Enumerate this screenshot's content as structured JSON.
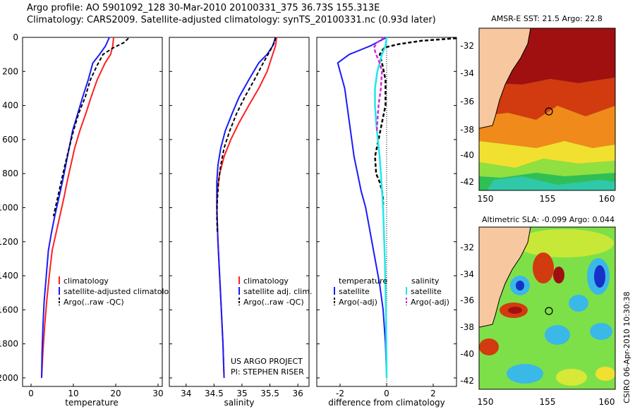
{
  "header": {
    "line1": "Argo profile: AO 5901092_128 30-Mar-2010 20100331_375 36.73S 155.313E",
    "line2": "Climatology: CARS2009. Satellite-adjusted climatology: synTS_20100331.nc (0.93d later)"
  },
  "panels": {
    "temperature": {
      "xlabel": "temperature",
      "xticks": [
        "0",
        "10",
        "20",
        "30"
      ],
      "legend": [
        "climatology",
        "satellite-adjusted climatology",
        "Argo(..raw -QC)"
      ]
    },
    "salinity": {
      "xlabel": "salinity",
      "xticks": [
        "34",
        "34.5",
        "35",
        "35.5",
        "36"
      ],
      "legend": [
        "climatology",
        "satellite adj. clim.",
        "Argo(..raw -QC)"
      ],
      "note1": "US ARGO PROJECT",
      "note2": "PI: STEPHEN RISER"
    },
    "difference": {
      "xlabel": "difference from climatology",
      "xticks": [
        "-2",
        "0",
        "2"
      ],
      "legend_head_t": "temperature",
      "legend_head_s": "salinity",
      "legend_t": [
        "satellite",
        "Argo(-adj)"
      ],
      "legend_s": [
        "satellite",
        "Argo(-adj)"
      ]
    }
  },
  "yticks": [
    "0",
    "200",
    "400",
    "600",
    "800",
    "1000",
    "1200",
    "1400",
    "1600",
    "1800",
    "2000"
  ],
  "maps": {
    "sst": {
      "title": "AMSR-E SST: 21.5 Argo: 22.8",
      "yticks": [
        "-32",
        "-34",
        "-36",
        "-38",
        "-40",
        "-42"
      ],
      "xticks": [
        "150",
        "155",
        "160"
      ]
    },
    "sla": {
      "title": "Altimetric SLA: -0.099 Argo: 0.044",
      "yticks": [
        "-32",
        "-34",
        "-36",
        "-38",
        "-40",
        "-42"
      ],
      "xticks": [
        "150",
        "155",
        "160"
      ]
    }
  },
  "credit": "CSIRO 06-Apr-2010 10:30:38",
  "colors": {
    "climatology": "#ff2020",
    "satellite": "#1a1aff",
    "argo": "#000000",
    "sal_sat": "#20e8e8",
    "sal_argo": "#e020e0"
  },
  "chart_data": [
    {
      "type": "line",
      "title": "",
      "xlabel": "temperature",
      "ylabel": "",
      "xlim": [
        -2,
        31
      ],
      "ylim": [
        2050,
        0
      ],
      "series": [
        {
          "name": "climatology",
          "x": [
            19.5,
            19.3,
            18.8,
            17.5,
            15.6,
            14.2,
            12.9,
            11.5,
            10.3,
            9.4,
            8.5,
            7.7,
            6.8,
            5.9,
            5.0,
            4.3,
            3.7,
            3.2,
            2.8,
            2.6,
            2.5
          ],
          "y": [
            0,
            50,
            100,
            150,
            250,
            350,
            450,
            550,
            650,
            750,
            850,
            950,
            1050,
            1150,
            1250,
            1400,
            1550,
            1700,
            1850,
            1950,
            2000
          ]
        },
        {
          "name": "satellite-adjusted climatology",
          "x": [
            18.5,
            17.6,
            16.2,
            14.6,
            13.5,
            12.2,
            11.0,
            9.8,
            9.0,
            8.2,
            7.4,
            6.5,
            5.6,
            4.8,
            4.1,
            3.6,
            3.1,
            2.8,
            2.6,
            2.5
          ],
          "y": [
            0,
            50,
            100,
            150,
            250,
            350,
            450,
            550,
            650,
            750,
            850,
            950,
            1050,
            1150,
            1250,
            1400,
            1550,
            1700,
            1850,
            2000
          ]
        },
        {
          "name": "Argo(..raw -QC)",
          "x": [
            23.0,
            22.0,
            19.5,
            17.0,
            15.5,
            14.0,
            12.8,
            11.2,
            10.0,
            9.0,
            8.0,
            7.1,
            6.2,
            5.3
          ],
          "y": [
            5,
            30,
            60,
            100,
            170,
            250,
            350,
            450,
            550,
            650,
            750,
            850,
            950,
            1050
          ]
        }
      ]
    },
    {
      "type": "line",
      "title": "",
      "xlabel": "salinity",
      "ylabel": "",
      "xlim": [
        33.7,
        36.2
      ],
      "ylim": [
        2050,
        0
      ],
      "series": [
        {
          "name": "climatology",
          "x": [
            35.62,
            35.6,
            35.55,
            35.45,
            35.3,
            35.12,
            34.95,
            34.8,
            34.68,
            34.6,
            34.56,
            34.55,
            34.57,
            34.6,
            34.63,
            34.66,
            34.68
          ],
          "y": [
            0,
            50,
            100,
            200,
            300,
            400,
            500,
            600,
            700,
            800,
            900,
            1000,
            1200,
            1400,
            1600,
            1800,
            2000
          ]
        },
        {
          "name": "satellite adj. clim.",
          "x": [
            35.6,
            35.55,
            35.45,
            35.3,
            35.12,
            34.95,
            34.82,
            34.7,
            34.62,
            34.57,
            34.55,
            34.55,
            34.57,
            34.6,
            34.63,
            34.66,
            34.68
          ],
          "y": [
            0,
            50,
            100,
            150,
            250,
            350,
            450,
            550,
            650,
            750,
            850,
            1000,
            1200,
            1400,
            1600,
            1800,
            2000
          ]
        },
        {
          "name": "Argo(..raw -QC)",
          "x": [
            35.6,
            35.58,
            35.5,
            35.38,
            35.22,
            35.05,
            34.9,
            34.78,
            34.68,
            34.62,
            34.58,
            34.56,
            34.55,
            34.56
          ],
          "y": [
            0,
            30,
            80,
            150,
            250,
            350,
            450,
            550,
            650,
            750,
            850,
            950,
            1050,
            1150
          ]
        }
      ]
    },
    {
      "type": "line",
      "title": "",
      "xlabel": "difference from climatology",
      "ylabel": "",
      "xlim": [
        -3,
        3
      ],
      "ylim": [
        2050,
        0
      ],
      "series": [
        {
          "name": "temperature satellite",
          "x": [
            0.0,
            -0.7,
            -1.6,
            -2.1,
            -2.0,
            -1.8,
            -1.7,
            -1.6,
            -1.5,
            -1.4,
            -1.25,
            -1.1,
            -0.9,
            -0.7,
            -0.5,
            -0.3,
            -0.15,
            -0.05,
            0.0
          ],
          "y": [
            0,
            50,
            100,
            150,
            200,
            300,
            400,
            500,
            600,
            700,
            800,
            900,
            1000,
            1150,
            1300,
            1450,
            1600,
            1800,
            2000
          ]
        },
        {
          "name": "temperature Argo(-adj)",
          "x": [
            3.0,
            1.5,
            0.5,
            -0.1,
            -0.3,
            -0.2,
            -0.05,
            -0.05,
            -0.2,
            -0.35,
            -0.5,
            -0.45,
            -0.3,
            -0.2,
            -0.15,
            -0.15
          ],
          "y": [
            5,
            20,
            40,
            60,
            100,
            150,
            250,
            400,
            500,
            600,
            700,
            800,
            850,
            900,
            950,
            1000
          ]
        },
        {
          "name": "salinity satellite",
          "x": [
            0.0,
            -0.05,
            -0.2,
            -0.4,
            -0.5,
            -0.5,
            -0.45,
            -0.38,
            -0.3,
            -0.25,
            -0.15,
            -0.08,
            -0.03,
            0.0
          ],
          "y": [
            0,
            50,
            100,
            200,
            300,
            400,
            500,
            600,
            700,
            800,
            1000,
            1300,
            1600,
            2000
          ]
        },
        {
          "name": "salinity Argo(-adj)",
          "x": [
            -0.1,
            -0.4,
            -0.55,
            -0.45,
            -0.3,
            -0.2,
            -0.25,
            -0.35,
            -0.4,
            -0.42
          ],
          "y": [
            0,
            30,
            60,
            100,
            150,
            200,
            300,
            400,
            500,
            550
          ]
        }
      ]
    }
  ]
}
